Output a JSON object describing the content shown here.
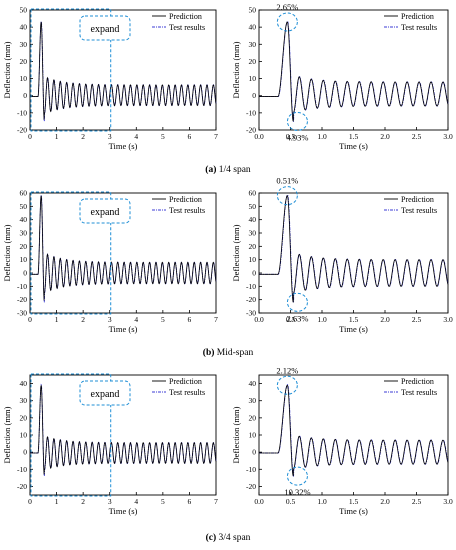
{
  "figure": {
    "panels": [
      {
        "caption_letter": "(a)",
        "caption_text": " 1/4 span",
        "full_plot": {
          "expand_label": "expand",
          "legend": [
            "Prediction",
            "Test results"
          ]
        },
        "zoom_plot": {
          "legend": [
            "Prediction",
            "Test results"
          ],
          "annotations": [
            {
              "text": "2.65%",
              "x": 0.45,
              "y": 43
            },
            {
              "text": "4.93%",
              "x": 0.61,
              "y": -15
            }
          ]
        }
      },
      {
        "caption_letter": "(b)",
        "caption_text": " Mid-span",
        "full_plot": {
          "expand_label": "expand",
          "legend": [
            "Prediction",
            "Test results"
          ]
        },
        "zoom_plot": {
          "legend": [
            "Prediction",
            "Test results"
          ],
          "annotations": [
            {
              "text": "0.51%",
              "x": 0.45,
              "y": 58
            },
            {
              "text": "2.63%",
              "x": 0.61,
              "y": -22
            }
          ]
        }
      },
      {
        "caption_letter": "(c)",
        "caption_text": " 3/4 span",
        "full_plot": {
          "expand_label": "expand",
          "legend": [
            "Prediction",
            "Test results"
          ]
        },
        "zoom_plot": {
          "legend": [
            "Prediction",
            "Test results"
          ],
          "annotations": [
            {
              "text": "2.12%",
              "x": 0.45,
              "y": 39
            },
            {
              "text": "10.32%",
              "x": 0.61,
              "y": -14
            }
          ]
        }
      }
    ]
  },
  "chart_data": [
    {
      "type": "line",
      "panel": "a",
      "view": "full",
      "xlabel": "Time (s)",
      "ylabel": "Deflection (mm)",
      "xlim": [
        0,
        7
      ],
      "ylim": [
        -20,
        50
      ],
      "xticks": [
        0,
        1,
        2,
        3,
        4,
        5,
        6,
        7
      ],
      "yticks": [
        -20,
        -10,
        0,
        10,
        20,
        30,
        40,
        50
      ],
      "series": [
        {
          "name": "Prediction",
          "color": "#000000"
        },
        {
          "name": "Test results",
          "color": "#3b3bd6"
        }
      ],
      "response": {
        "onset": 0.3,
        "peak_time": 0.42,
        "peak": 43,
        "first_min": -15,
        "base": -0.5,
        "period": 0.24,
        "amp_late": 6,
        "offset": 0.3,
        "decay": 1.5
      }
    },
    {
      "type": "line",
      "panel": "a",
      "view": "zoom",
      "xlabel": "Time (s)",
      "ylabel": "Deflection (mm)",
      "xlim": [
        0,
        3
      ],
      "ylim": [
        -20,
        50
      ],
      "xticks": [
        0.0,
        0.5,
        1.0,
        1.5,
        2.0,
        2.5,
        3.0
      ],
      "yticks": [
        -20,
        -10,
        0,
        10,
        20,
        30,
        40,
        50
      ],
      "series": [
        {
          "name": "Prediction",
          "color": "#000000"
        },
        {
          "name": "Test results",
          "color": "#3b3bd6"
        }
      ],
      "response": {
        "onset": 0.3,
        "peak_time": 0.45,
        "peak": 43,
        "first_min": -15,
        "base": -0.5,
        "period": 0.19,
        "amp_late": 7,
        "offset": 1,
        "decay": 3
      }
    },
    {
      "type": "line",
      "panel": "b",
      "view": "full",
      "xlabel": "Time (s)",
      "ylabel": "Deflection (mm)",
      "xlim": [
        0,
        7
      ],
      "ylim": [
        -30,
        60
      ],
      "xticks": [
        0,
        1,
        2,
        3,
        4,
        5,
        6,
        7
      ],
      "yticks": [
        -30,
        -20,
        -10,
        0,
        10,
        20,
        30,
        40,
        50,
        60
      ],
      "series": [
        {
          "name": "Prediction",
          "color": "#000000"
        },
        {
          "name": "Test results",
          "color": "#3b3bd6"
        }
      ],
      "response": {
        "onset": 0.3,
        "peak_time": 0.42,
        "peak": 58,
        "first_min": -22,
        "base": -1,
        "period": 0.24,
        "amp_late": 8,
        "offset": 0,
        "decay": 1.5
      }
    },
    {
      "type": "line",
      "panel": "b",
      "view": "zoom",
      "xlabel": "Time (s)",
      "ylabel": "Deflection (mm)",
      "xlim": [
        0,
        3
      ],
      "ylim": [
        -30,
        60
      ],
      "xticks": [
        0.0,
        0.5,
        1.0,
        1.5,
        2.0,
        2.5,
        3.0
      ],
      "yticks": [
        -30,
        -20,
        -10,
        0,
        10,
        20,
        30,
        40,
        50,
        60
      ],
      "series": [
        {
          "name": "Prediction",
          "color": "#000000"
        },
        {
          "name": "Test results",
          "color": "#3b3bd6"
        }
      ],
      "response": {
        "onset": 0.3,
        "peak_time": 0.45,
        "peak": 58,
        "first_min": -22,
        "base": -1,
        "period": 0.19,
        "amp_late": 10,
        "offset": 0,
        "decay": 3
      }
    },
    {
      "type": "line",
      "panel": "c",
      "view": "full",
      "xlabel": "Time (s)",
      "ylabel": "Deflection (mm)",
      "xlim": [
        0,
        7
      ],
      "ylim": [
        -25,
        45
      ],
      "xticks": [
        0,
        1,
        2,
        3,
        4,
        5,
        6,
        7
      ],
      "yticks": [
        -20,
        -10,
        0,
        10,
        20,
        30,
        40
      ],
      "series": [
        {
          "name": "Prediction",
          "color": "#000000"
        },
        {
          "name": "Test results",
          "color": "#3b3bd6"
        }
      ],
      "response": {
        "onset": 0.3,
        "peak_time": 0.42,
        "peak": 39,
        "first_min": -14,
        "base": -0.5,
        "period": 0.24,
        "amp_late": 6,
        "offset": -0.5,
        "decay": 1.5
      }
    },
    {
      "type": "line",
      "panel": "c",
      "view": "zoom",
      "xlabel": "Time (s)",
      "ylabel": "Deflection (mm)",
      "xlim": [
        0,
        3
      ],
      "ylim": [
        -25,
        45
      ],
      "xticks": [
        0.0,
        0.5,
        1.0,
        1.5,
        2.0,
        2.5,
        3.0
      ],
      "yticks": [
        -20,
        -10,
        0,
        10,
        20,
        30,
        40
      ],
      "series": [
        {
          "name": "Prediction",
          "color": "#000000"
        },
        {
          "name": "Test results",
          "color": "#3b3bd6"
        }
      ],
      "response": {
        "onset": 0.3,
        "peak_time": 0.45,
        "peak": 39,
        "first_min": -14,
        "base": -0.5,
        "period": 0.19,
        "amp_late": 7,
        "offset": 0,
        "decay": 3
      }
    }
  ]
}
